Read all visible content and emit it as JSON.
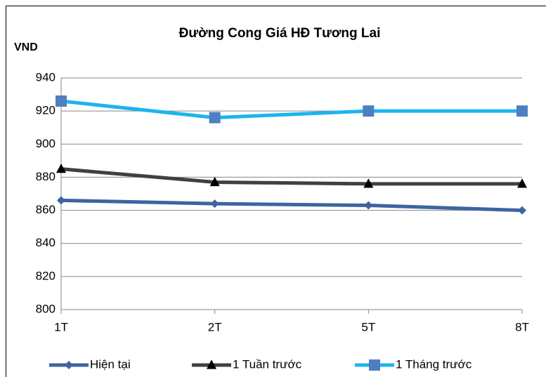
{
  "chart_data": {
    "type": "line",
    "title": "Đường Cong Giá HĐ Tương Lai",
    "y_label": "VND",
    "categories": [
      "1T",
      "2T",
      "5T",
      "8T"
    ],
    "series": [
      {
        "name": "Hiện tại",
        "color": "#3d64a0",
        "marker": "diamond",
        "marker_color": "#3d64a0",
        "values": [
          866,
          864,
          863,
          860
        ]
      },
      {
        "name": "1 Tuần trước",
        "color": "#404040",
        "marker": "triangle",
        "marker_color": "#000000",
        "values": [
          885,
          877,
          876,
          876
        ]
      },
      {
        "name": "1 Tháng trước",
        "color": "#1cb4ee",
        "marker": "square",
        "marker_color": "#4f7fc0",
        "values": [
          926,
          916,
          920,
          920
        ]
      }
    ],
    "ylim": [
      800,
      940
    ],
    "yticks": [
      800,
      820,
      840,
      860,
      880,
      900,
      920,
      940
    ],
    "grid": true,
    "legend": "bottom"
  }
}
